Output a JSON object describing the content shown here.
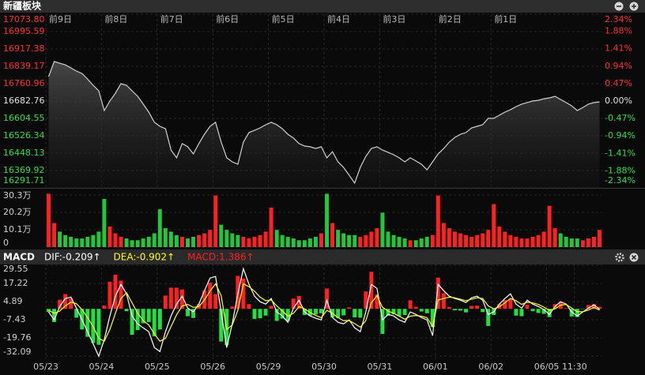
{
  "chart_data": [
    {
      "type": "line",
      "title": "新疆板块",
      "xlim": [
        0,
        10
      ],
      "xticks": [
        {
          "value": 0,
          "label": "前9日"
        },
        {
          "value": 1,
          "label": "前8日"
        },
        {
          "value": 2,
          "label": "前7日"
        },
        {
          "value": 3,
          "label": "前6日"
        },
        {
          "value": 4,
          "label": "前5日"
        },
        {
          "value": 5,
          "label": "前4日"
        },
        {
          "value": 6,
          "label": "前3日"
        },
        {
          "value": 7,
          "label": "前2日"
        },
        {
          "value": 8,
          "label": "前1日"
        }
      ],
      "ylim": [
        16291.71,
        17073.8
      ],
      "yticks": [
        {
          "value": 17073.8,
          "label": "17073.80"
        },
        16995.59,
        16917.38,
        16839.17,
        16760.96,
        16682.76,
        16604.55,
        16526.34,
        16448.13,
        16369.92,
        16291.71
      ],
      "y2lim": [
        -2.34,
        2.34
      ],
      "y2ticks": [
        {
          "value": 2.34,
          "label": "2.34%"
        },
        {
          "value": 1.88,
          "label": "1.88%"
        },
        {
          "value": 1.41,
          "label": "1.41%"
        },
        {
          "value": 0.94,
          "label": "0.94%"
        },
        {
          "value": 0.47,
          "label": "0.47%"
        },
        {
          "value": 0,
          "label": "0.00%"
        },
        {
          "value": -0.47,
          "label": "-0.47%"
        },
        {
          "value": -0.94,
          "label": "-0.94%"
        },
        {
          "value": -1.41,
          "label": "-1.41%"
        },
        {
          "value": -1.88,
          "label": "-1.88%"
        },
        {
          "value": -2.34,
          "label": "-2.34%"
        }
      ],
      "grid": true,
      "tick_colors": {
        "up": "#ff3030",
        "flat": "#e0e0e0",
        "down": "#2ee04a"
      },
      "series": [
        {
          "color": "#d0d0d0",
          "values": [
            16793,
            16861,
            16853,
            16846,
            16832,
            16818,
            16807,
            16782,
            16754,
            16729,
            16640,
            16683,
            16718,
            16761,
            16754,
            16729,
            16704,
            16669,
            16633,
            16587,
            16569,
            16558,
            16462,
            16427,
            16491,
            16477,
            16445,
            16491,
            16533,
            16569,
            16587,
            16498,
            16427,
            16409,
            16398,
            16498,
            16541,
            16551,
            16562,
            16576,
            16587,
            16576,
            16558,
            16533,
            16516,
            16491,
            16480,
            16477,
            16469,
            16477,
            16427,
            16455,
            16409,
            16384,
            16349,
            16313,
            16384,
            16434,
            16469,
            16477,
            16462,
            16452,
            16441,
            16427,
            16409,
            16427,
            16413,
            16398,
            16373,
            16409,
            16445,
            16469,
            16498,
            16519,
            16533,
            16541,
            16562,
            16569,
            16576,
            16605,
            16605,
            16619,
            16633,
            16644,
            16658,
            16669,
            16676,
            16683,
            16686,
            16693,
            16697,
            16704,
            16690,
            16676,
            16661,
            16640,
            16654,
            16669,
            16676,
            16679
          ]
        }
      ]
    },
    {
      "type": "bar",
      "ylim": [
        0,
        33.5
      ],
      "yticks": [
        {
          "value": 30.3,
          "label": "30.3万"
        },
        {
          "value": 20.2,
          "label": "20.2万"
        },
        {
          "value": 10.1,
          "label": "10.1万"
        },
        0
      ],
      "grid": true,
      "series": [
        {
          "color": "#ff2020",
          "down_color": "#22c83a",
          "values": [
            31,
            14,
            9,
            7,
            6,
            5,
            5,
            6,
            7,
            9,
            28,
            12,
            8,
            6,
            5,
            4,
            4,
            5,
            6,
            8,
            22,
            11,
            9,
            7,
            6,
            5,
            6,
            7,
            8,
            10,
            30,
            13,
            10,
            8,
            7,
            6,
            5,
            6,
            7,
            9,
            23,
            10,
            7,
            6,
            5,
            4,
            4,
            5,
            6,
            8,
            31,
            14,
            10,
            8,
            7,
            7,
            6,
            7,
            9,
            11,
            20,
            9,
            7,
            6,
            5,
            4,
            4,
            5,
            6,
            7,
            30,
            14,
            11,
            9,
            8,
            7,
            6,
            7,
            8,
            10,
            25,
            12,
            9,
            7,
            6,
            5,
            5,
            6,
            7,
            9,
            24,
            11,
            8,
            6,
            5,
            5,
            4,
            5,
            6,
            10
          ]
        }
      ]
    },
    {
      "type": "line",
      "title": "MACD",
      "xlim": [
        0,
        10
      ],
      "xticks": [
        {
          "value": 0,
          "label": "05/23"
        },
        {
          "value": 1,
          "label": "05/24"
        },
        {
          "value": 2,
          "label": "05/25"
        },
        {
          "value": 3,
          "label": "05/26"
        },
        {
          "value": 4,
          "label": "05/29"
        },
        {
          "value": 5,
          "label": "05/30"
        },
        {
          "value": 6,
          "label": "05/31"
        },
        {
          "value": 7,
          "label": "06/01"
        },
        {
          "value": 8,
          "label": "06/02"
        },
        {
          "value": 9,
          "label": "06/05"
        },
        {
          "value": 9.5,
          "label": "11:30"
        }
      ],
      "ylim": [
        -34.2,
        31.2
      ],
      "yticks": [
        29.55,
        17.22,
        4.89,
        -7.43,
        -19.76,
        -32.09
      ],
      "grid": true,
      "series": [
        {
          "name": "DIF:-0.209↑",
          "color": "#ffffff",
          "values": [
            -2.1,
            -7.5,
            1.6,
            7.0,
            8.0,
            0.5,
            -7.5,
            -15.5,
            -23.6,
            -32.2,
            -20.9,
            -4.8,
            8.6,
            16.6,
            10.2,
            -4.8,
            -10.2,
            -12.9,
            -15.5,
            -26.3,
            -29.0,
            -15.5,
            -4.8,
            3.2,
            8.6,
            0.5,
            -2.1,
            3.2,
            12.3,
            20.9,
            22.0,
            -2.1,
            -26.3,
            -10.2,
            10.2,
            27.3,
            16.6,
            8.6,
            4.8,
            3.2,
            7.0,
            -2.1,
            -4.8,
            -9.1,
            0.5,
            5.9,
            -2.1,
            -4.8,
            -6.4,
            -7.5,
            5.9,
            -5.9,
            -9.1,
            -10.2,
            -7.5,
            -12.9,
            -15.5,
            -2.1,
            16.6,
            13.9,
            -7.5,
            -3.8,
            -4.8,
            -7.5,
            -9.1,
            -2.1,
            -3.8,
            -5.9,
            -7.5,
            -18.2,
            16.6,
            12.3,
            8.6,
            7.0,
            5.9,
            4.3,
            7.5,
            8.6,
            5.9,
            -3.8,
            -2.1,
            3.2,
            7.0,
            10.2,
            3.2,
            0.5,
            5.9,
            3.2,
            1.6,
            -0.5,
            -3.8,
            1.6,
            4.8,
            3.2,
            -2.1,
            -4.8,
            -2.1,
            0.5,
            2.7,
            -0.209
          ]
        },
        {
          "name": "DEA:-0.902↑",
          "color": "#ffff22",
          "values": [
            -1.0,
            -3.0,
            -1.5,
            2.0,
            4.5,
            3.5,
            -0.5,
            -6.0,
            -12.0,
            -20.0,
            -22.0,
            -14.0,
            -3.0,
            7.0,
            11.0,
            4.0,
            -3.0,
            -8.0,
            -11.0,
            -17.0,
            -22.0,
            -20.0,
            -12.0,
            -4.0,
            2.0,
            3.0,
            1.0,
            1.5,
            6.0,
            12.0,
            17.0,
            9.0,
            -14.0,
            -11.0,
            -1.0,
            17.0,
            15.0,
            12.0,
            8.0,
            5.5,
            6.0,
            2.0,
            -1.5,
            -5.0,
            -3.0,
            1.5,
            0.0,
            -2.5,
            -4.5,
            -6.0,
            -1.0,
            -3.0,
            -6.0,
            -8.0,
            -8.0,
            -10.0,
            -12.5,
            -8.0,
            4.0,
            9.0,
            1.0,
            -1.5,
            -3.0,
            -5.0,
            -7.0,
            -5.0,
            -4.5,
            -5.0,
            -6.0,
            -12.0,
            6.0,
            7.0,
            8.0,
            7.5,
            6.5,
            5.5,
            6.5,
            7.5,
            7.0,
            2.0,
            0.0,
            1.5,
            4.0,
            7.0,
            5.5,
            3.0,
            4.5,
            4.0,
            3.0,
            1.2,
            -1.0,
            0.0,
            2.5,
            3.0,
            0.5,
            -2.0,
            -2.0,
            -0.8,
            1.0,
            -0.902
          ]
        },
        {
          "name": "MACD:1.386↑",
          "type": "bar",
          "color": "#ff2020",
          "negative_color": "#22e040",
          "values": [
            -2.2,
            -9.0,
            6.2,
            10.0,
            7.0,
            -6.0,
            -14.0,
            -19.0,
            -23.2,
            -24.4,
            2.2,
            18.4,
            23.2,
            19.2,
            -1.6,
            -17.6,
            -14.4,
            -9.8,
            -9.0,
            -18.6,
            -14.0,
            9.0,
            14.4,
            14.4,
            13.2,
            -5.0,
            -6.2,
            3.4,
            12.6,
            17.8,
            10.0,
            -22.2,
            -24.6,
            1.6,
            22.4,
            20.6,
            3.2,
            -6.8,
            -6.4,
            -4.6,
            2.0,
            -8.2,
            -6.6,
            -8.2,
            7.0,
            8.8,
            -4.2,
            -4.6,
            -3.8,
            -3.0,
            13.8,
            -5.8,
            -6.2,
            -4.4,
            1.0,
            -5.8,
            -6.0,
            11.8,
            25.2,
            9.8,
            -17.0,
            -4.6,
            -3.6,
            -5.0,
            -4.2,
            5.8,
            1.4,
            -1.8,
            -3.0,
            -12.4,
            21.2,
            10.6,
            1.2,
            -1.0,
            -1.2,
            -2.4,
            2.0,
            2.2,
            -2.2,
            -11.6,
            -4.2,
            3.4,
            6.0,
            6.4,
            -4.6,
            -5.0,
            2.8,
            -1.6,
            -2.8,
            -3.4,
            -5.6,
            3.2,
            4.6,
            0.4,
            -5.2,
            -5.6,
            -0.2,
            2.6,
            3.4,
            1.386
          ]
        }
      ]
    }
  ]
}
